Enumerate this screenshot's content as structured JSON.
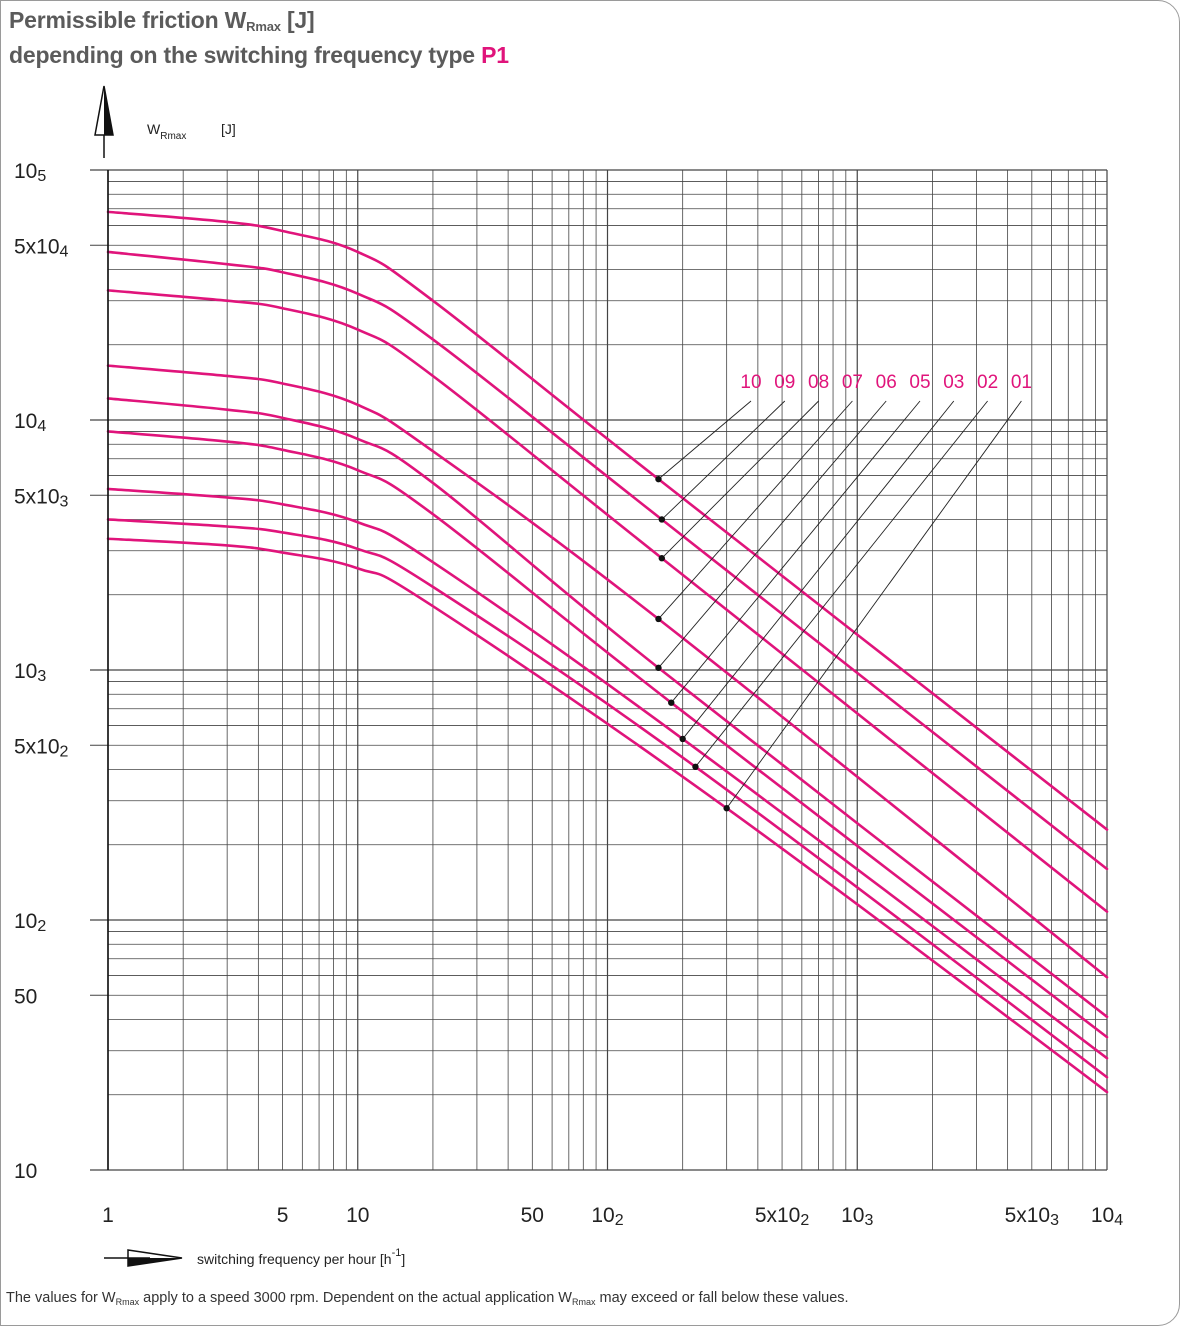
{
  "title": {
    "line1_main": "Permissible friction W",
    "line1_sub": "Rmax",
    "line1_unit": " [J]",
    "line2_main": "depending on the switching frequency type ",
    "line2_accent": "P1"
  },
  "footnote": {
    "part1": "The values for W",
    "sub1": "Rmax",
    "part2": " apply to a speed 3000 rpm. Dependent on the actual application W",
    "sub2": "Rmax",
    "part3": " may exceed or fall below these values."
  },
  "colors": {
    "series": "#e0147b",
    "grid": "#444444",
    "text": "#222222"
  },
  "chart_data": {
    "type": "line",
    "title": "Permissible friction WRmax [J] depending on the switching frequency type P1",
    "ylabel_main": "W",
    "ylabel_sub": "Rmax",
    "ylabel_unit": "[J]",
    "xlabel_main": "switching frequency per hour [h",
    "xlabel_sup": "-1",
    "xlabel_end": "]",
    "x_scale": "log",
    "y_scale": "log",
    "xlim": [
      1,
      10000
    ],
    "ylim": [
      10,
      100000
    ],
    "grid": true,
    "x_ticks": [
      {
        "value": 1,
        "base": "1",
        "exp": ""
      },
      {
        "value": 5,
        "base": "5",
        "exp": ""
      },
      {
        "value": 10,
        "base": "10",
        "exp": ""
      },
      {
        "value": 50,
        "base": "50",
        "exp": ""
      },
      {
        "value": 100,
        "base": "10",
        "exp": "2"
      },
      {
        "value": 500,
        "base": "5x10",
        "exp": "2"
      },
      {
        "value": 1000,
        "base": "10",
        "exp": "3"
      },
      {
        "value": 5000,
        "base": "5x10",
        "exp": "3"
      },
      {
        "value": 10000,
        "base": "10",
        "exp": "4"
      }
    ],
    "y_ticks": [
      {
        "value": 10,
        "base": "10",
        "exp": ""
      },
      {
        "value": 50,
        "base": "50",
        "exp": ""
      },
      {
        "value": 100,
        "base": "10",
        "exp": "2"
      },
      {
        "value": 500,
        "base": "5x10",
        "exp": "2"
      },
      {
        "value": 1000,
        "base": "10",
        "exp": "3"
      },
      {
        "value": 5000,
        "base": "5x10",
        "exp": "3"
      },
      {
        "value": 10000,
        "base": "10",
        "exp": "4"
      },
      {
        "value": 50000,
        "base": "5x10",
        "exp": "4"
      },
      {
        "value": 100000,
        "base": "10",
        "exp": "5"
      }
    ],
    "series": [
      {
        "name": "10",
        "values": [
          [
            1,
            68000
          ],
          [
            3,
            62000
          ],
          [
            5,
            57000
          ],
          [
            10,
            47000
          ],
          [
            20,
            30000
          ],
          [
            160,
            5800
          ],
          [
            10000,
            230
          ]
        ]
      },
      {
        "name": "09",
        "values": [
          [
            1,
            47000
          ],
          [
            3,
            42000
          ],
          [
            5,
            39000
          ],
          [
            10,
            32000
          ],
          [
            20,
            21000
          ],
          [
            165,
            4000
          ],
          [
            10000,
            160
          ]
        ]
      },
      {
        "name": "08",
        "values": [
          [
            1,
            33000
          ],
          [
            3,
            30000
          ],
          [
            5,
            28000
          ],
          [
            10,
            23000
          ],
          [
            20,
            15000
          ],
          [
            165,
            2800
          ],
          [
            10000,
            108
          ]
        ]
      },
      {
        "name": "07",
        "values": [
          [
            1,
            16500
          ],
          [
            3,
            15000
          ],
          [
            5,
            14000
          ],
          [
            10,
            11500
          ],
          [
            20,
            7500
          ],
          [
            160,
            1600
          ],
          [
            10000,
            59
          ]
        ]
      },
      {
        "name": "06",
        "values": [
          [
            1,
            12200
          ],
          [
            3,
            11000
          ],
          [
            5,
            10200
          ],
          [
            10,
            8400
          ],
          [
            20,
            5600
          ],
          [
            160,
            1020
          ],
          [
            10000,
            41
          ]
        ]
      },
      {
        "name": "05",
        "values": [
          [
            1,
            9000
          ],
          [
            3,
            8200
          ],
          [
            5,
            7600
          ],
          [
            10,
            6300
          ],
          [
            20,
            4200
          ],
          [
            180,
            740
          ],
          [
            10000,
            34
          ]
        ]
      },
      {
        "name": "03",
        "values": [
          [
            1,
            5300
          ],
          [
            3,
            4900
          ],
          [
            5,
            4600
          ],
          [
            10,
            3900
          ],
          [
            20,
            2700
          ],
          [
            200,
            530
          ],
          [
            10000,
            28
          ]
        ]
      },
      {
        "name": "02",
        "values": [
          [
            1,
            4000
          ],
          [
            3,
            3750
          ],
          [
            5,
            3550
          ],
          [
            10,
            3050
          ],
          [
            20,
            2150
          ],
          [
            225,
            410
          ],
          [
            10000,
            23.5
          ]
        ]
      },
      {
        "name": "01",
        "values": [
          [
            1,
            3350
          ],
          [
            3,
            3150
          ],
          [
            5,
            2950
          ],
          [
            10,
            2550
          ],
          [
            20,
            1800
          ],
          [
            300,
            280
          ],
          [
            10000,
            20.5
          ]
        ]
      }
    ],
    "label_markers": [
      {
        "name": "10",
        "x": 160,
        "y": 5800
      },
      {
        "name": "09",
        "x": 165,
        "y": 4000
      },
      {
        "name": "08",
        "x": 165,
        "y": 2800
      },
      {
        "name": "07",
        "x": 160,
        "y": 1600
      },
      {
        "name": "06",
        "x": 160,
        "y": 1020
      },
      {
        "name": "05",
        "x": 180,
        "y": 740
      },
      {
        "name": "03",
        "x": 200,
        "y": 530
      },
      {
        "name": "02",
        "x": 225,
        "y": 410
      },
      {
        "name": "01",
        "x": 300,
        "y": 280
      }
    ]
  }
}
